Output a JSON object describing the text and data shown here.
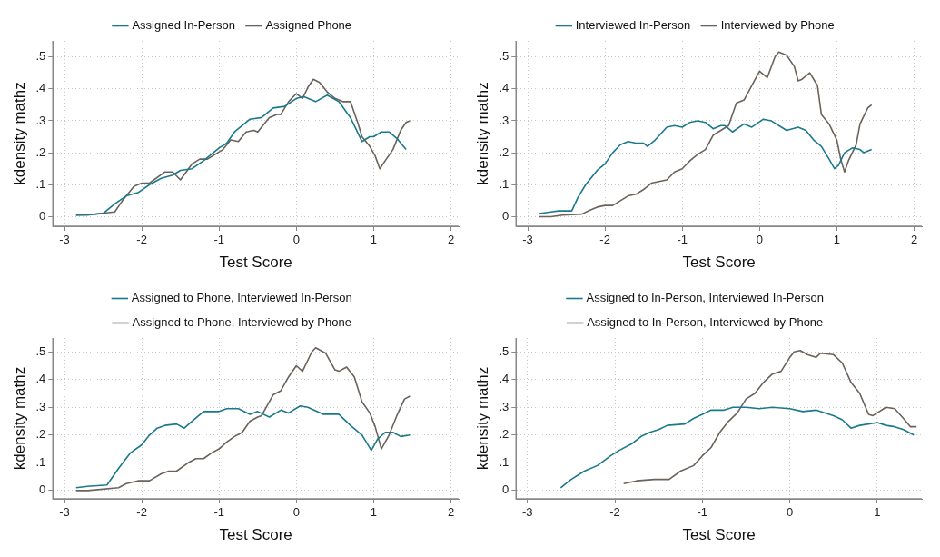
{
  "chart_data": [
    {
      "type": "line",
      "xlabel": "Test Score",
      "ylabel": "kdensity mathz",
      "legend": "top",
      "grid": true,
      "marker": "none",
      "line_style": "solid",
      "xlim": [
        -3.15,
        2.1
      ],
      "ylim": [
        -0.03,
        0.55
      ],
      "xticks": [
        -3,
        -2,
        -1,
        0,
        1,
        2
      ],
      "yticks": [
        {
          "value": 0,
          "label": "0"
        },
        {
          "value": 0.1,
          "label": ".1"
        },
        {
          "value": 0.2,
          "label": ".2"
        },
        {
          "value": 0.3,
          "label": ".3"
        },
        {
          "value": 0.4,
          "label": ".4"
        },
        {
          "value": 0.5,
          "label": ".5"
        }
      ],
      "series": [
        {
          "name": "Assigned In-Person",
          "color": "#1a7a8c",
          "x": [
            -2.85,
            -2.6,
            -2.5,
            -2.35,
            -2.2,
            -2.05,
            -1.9,
            -1.75,
            -1.6,
            -1.5,
            -1.35,
            -1.2,
            -1.0,
            -0.9,
            -0.8,
            -0.6,
            -0.45,
            -0.3,
            -0.15,
            0,
            0.1,
            0.25,
            0.4,
            0.55,
            0.7,
            0.85,
            0.95,
            1.0,
            1.1,
            1.2,
            1.3,
            1.42
          ],
          "values": [
            0.005,
            0.008,
            0.01,
            0.04,
            0.065,
            0.075,
            0.1,
            0.12,
            0.13,
            0.145,
            0.15,
            0.175,
            0.215,
            0.23,
            0.265,
            0.305,
            0.31,
            0.34,
            0.345,
            0.37,
            0.375,
            0.36,
            0.38,
            0.36,
            0.31,
            0.235,
            0.25,
            0.25,
            0.265,
            0.265,
            0.245,
            0.21
          ]
        },
        {
          "name": "Assigned Phone",
          "color": "#6b625b",
          "x": [
            -2.85,
            -2.7,
            -2.55,
            -2.35,
            -2.25,
            -2.1,
            -2.0,
            -1.9,
            -1.7,
            -1.6,
            -1.5,
            -1.35,
            -1.25,
            -1.15,
            -1.05,
            -0.95,
            -0.85,
            -0.75,
            -0.65,
            -0.55,
            -0.5,
            -0.35,
            -0.25,
            -0.2,
            -0.1,
            0,
            0.08,
            0.15,
            0.22,
            0.3,
            0.4,
            0.5,
            0.6,
            0.7,
            0.8,
            0.85,
            0.95,
            1.02,
            1.08,
            1.15,
            1.25,
            1.35,
            1.42,
            1.47
          ],
          "values": [
            0.005,
            0.005,
            0.01,
            0.015,
            0.05,
            0.095,
            0.105,
            0.105,
            0.14,
            0.14,
            0.115,
            0.165,
            0.18,
            0.18,
            0.195,
            0.21,
            0.24,
            0.235,
            0.265,
            0.27,
            0.265,
            0.31,
            0.32,
            0.32,
            0.36,
            0.385,
            0.37,
            0.405,
            0.43,
            0.42,
            0.39,
            0.37,
            0.36,
            0.36,
            0.29,
            0.25,
            0.22,
            0.19,
            0.15,
            0.175,
            0.21,
            0.27,
            0.295,
            0.3
          ]
        }
      ]
    },
    {
      "type": "line",
      "xlabel": "Test Score",
      "ylabel": "kdensity mathz",
      "legend": "top",
      "grid": true,
      "marker": "none",
      "line_style": "solid",
      "xlim": [
        -3.15,
        2.1
      ],
      "ylim": [
        -0.03,
        0.55
      ],
      "xticks": [
        -3,
        -2,
        -1,
        0,
        1,
        2
      ],
      "yticks": [
        {
          "value": 0,
          "label": "0"
        },
        {
          "value": 0.1,
          "label": ".1"
        },
        {
          "value": 0.2,
          "label": ".2"
        },
        {
          "value": 0.3,
          "label": ".3"
        },
        {
          "value": 0.4,
          "label": ".4"
        },
        {
          "value": 0.5,
          "label": ".5"
        }
      ],
      "series": [
        {
          "name": "Interviewed In-Person",
          "color": "#1a7a8c",
          "x": [
            -2.85,
            -2.7,
            -2.6,
            -2.43,
            -2.35,
            -2.25,
            -2.1,
            -2.0,
            -1.9,
            -1.8,
            -1.7,
            -1.6,
            -1.5,
            -1.45,
            -1.35,
            -1.2,
            -1.1,
            -1.0,
            -0.9,
            -0.8,
            -0.7,
            -0.6,
            -0.5,
            -0.45,
            -0.35,
            -0.2,
            -0.1,
            0.05,
            0.15,
            0.35,
            0.5,
            0.6,
            0.7,
            0.8,
            0.9,
            0.97,
            1.02,
            1.1,
            1.2,
            1.3,
            1.35,
            1.45
          ],
          "values": [
            0.01,
            0.015,
            0.018,
            0.018,
            0.06,
            0.1,
            0.145,
            0.165,
            0.2,
            0.225,
            0.235,
            0.23,
            0.23,
            0.22,
            0.24,
            0.28,
            0.285,
            0.28,
            0.295,
            0.3,
            0.295,
            0.275,
            0.285,
            0.285,
            0.265,
            0.29,
            0.28,
            0.305,
            0.3,
            0.27,
            0.28,
            0.27,
            0.24,
            0.22,
            0.18,
            0.15,
            0.16,
            0.2,
            0.215,
            0.21,
            0.2,
            0.21
          ]
        },
        {
          "name": "Interviewed by Phone",
          "color": "#6b625b",
          "x": [
            -2.85,
            -2.7,
            -2.55,
            -2.3,
            -2.2,
            -2.1,
            -2.0,
            -1.9,
            -1.8,
            -1.7,
            -1.6,
            -1.5,
            -1.4,
            -1.3,
            -1.2,
            -1.1,
            -1.0,
            -0.9,
            -0.8,
            -0.7,
            -0.6,
            -0.5,
            -0.4,
            -0.3,
            -0.2,
            -0.1,
            0,
            0.1,
            0.2,
            0.25,
            0.35,
            0.45,
            0.5,
            0.55,
            0.65,
            0.75,
            0.8,
            0.9,
            1.0,
            1.05,
            1.1,
            1.15,
            1.25,
            1.3,
            1.4,
            1.45
          ],
          "values": [
            0,
            0,
            0.005,
            0.008,
            0.02,
            0.03,
            0.035,
            0.035,
            0.05,
            0.065,
            0.07,
            0.085,
            0.105,
            0.11,
            0.115,
            0.14,
            0.15,
            0.175,
            0.195,
            0.21,
            0.255,
            0.27,
            0.285,
            0.355,
            0.365,
            0.41,
            0.455,
            0.435,
            0.5,
            0.515,
            0.505,
            0.47,
            0.425,
            0.43,
            0.45,
            0.41,
            0.32,
            0.29,
            0.24,
            0.18,
            0.14,
            0.175,
            0.225,
            0.29,
            0.34,
            0.35
          ]
        }
      ]
    },
    {
      "type": "line",
      "xlabel": "Test Score",
      "ylabel": "kdensity mathz",
      "legend": "top",
      "grid": true,
      "marker": "none",
      "line_style": "solid",
      "xlim": [
        -3.15,
        2.1
      ],
      "ylim": [
        -0.03,
        0.55
      ],
      "xticks": [
        -3,
        -2,
        -1,
        0,
        1,
        2
      ],
      "yticks": [
        {
          "value": 0,
          "label": "0"
        },
        {
          "value": 0.1,
          "label": ".1"
        },
        {
          "value": 0.2,
          "label": ".2"
        },
        {
          "value": 0.3,
          "label": ".3"
        },
        {
          "value": 0.4,
          "label": ".4"
        },
        {
          "value": 0.5,
          "label": ".5"
        }
      ],
      "series": [
        {
          "name": "Assigned to Phone, Interviewed In-Person",
          "color": "#1a7a8c",
          "x": [
            -2.85,
            -2.7,
            -2.45,
            -2.3,
            -2.15,
            -2.0,
            -1.9,
            -1.8,
            -1.7,
            -1.55,
            -1.45,
            -1.35,
            -1.2,
            -1.0,
            -0.9,
            -0.75,
            -0.6,
            -0.5,
            -0.35,
            -0.2,
            -0.1,
            0.05,
            0.15,
            0.35,
            0.55,
            0.7,
            0.85,
            0.97,
            1.05,
            1.15,
            1.25,
            1.35,
            1.47
          ],
          "values": [
            0.01,
            0.015,
            0.02,
            0.08,
            0.135,
            0.165,
            0.2,
            0.225,
            0.235,
            0.24,
            0.225,
            0.25,
            0.285,
            0.285,
            0.295,
            0.295,
            0.275,
            0.285,
            0.265,
            0.29,
            0.28,
            0.305,
            0.3,
            0.275,
            0.275,
            0.235,
            0.2,
            0.145,
            0.185,
            0.21,
            0.21,
            0.195,
            0.2
          ]
        },
        {
          "name": "Assigned to Phone, Interviewed by Phone",
          "color": "#6b625b",
          "x": [
            -2.85,
            -2.7,
            -2.3,
            -2.2,
            -2.05,
            -1.9,
            -1.75,
            -1.65,
            -1.55,
            -1.4,
            -1.3,
            -1.2,
            -1.1,
            -1.0,
            -0.9,
            -0.8,
            -0.7,
            -0.6,
            -0.5,
            -0.45,
            -0.3,
            -0.2,
            -0.1,
            0,
            0.08,
            0.2,
            0.25,
            0.38,
            0.5,
            0.55,
            0.65,
            0.75,
            0.85,
            0.95,
            1.02,
            1.1,
            1.2,
            1.3,
            1.4,
            1.47
          ],
          "values": [
            0,
            0,
            0.01,
            0.025,
            0.035,
            0.035,
            0.06,
            0.07,
            0.07,
            0.1,
            0.115,
            0.115,
            0.135,
            0.15,
            0.175,
            0.195,
            0.21,
            0.25,
            0.265,
            0.27,
            0.345,
            0.36,
            0.41,
            0.45,
            0.43,
            0.5,
            0.515,
            0.495,
            0.435,
            0.43,
            0.445,
            0.41,
            0.32,
            0.28,
            0.23,
            0.15,
            0.2,
            0.27,
            0.33,
            0.34
          ]
        }
      ]
    },
    {
      "type": "line",
      "xlabel": "Test Score",
      "ylabel": "kdensity mathz",
      "legend": "top",
      "grid": true,
      "marker": "none",
      "line_style": "solid",
      "xlim": [
        -3.13,
        1.51
      ],
      "ylim": [
        -0.03,
        0.55
      ],
      "xticks": [
        -3,
        -2,
        -1,
        0,
        1
      ],
      "yticks": [
        {
          "value": 0,
          "label": "0"
        },
        {
          "value": 0.1,
          "label": ".1"
        },
        {
          "value": 0.2,
          "label": ".2"
        },
        {
          "value": 0.3,
          "label": ".3"
        },
        {
          "value": 0.4,
          "label": ".4"
        },
        {
          "value": 0.5,
          "label": ".5"
        }
      ],
      "series": [
        {
          "name": "Assigned to In-Person, Interviewed In-Person",
          "color": "#1a7a8c",
          "x": [
            -2.62,
            -2.5,
            -2.35,
            -2.2,
            -2.05,
            -1.95,
            -1.8,
            -1.7,
            -1.6,
            -1.5,
            -1.4,
            -1.2,
            -1.1,
            -1.0,
            -0.9,
            -0.75,
            -0.65,
            -0.5,
            -0.35,
            -0.2,
            0,
            0.15,
            0.3,
            0.5,
            0.6,
            0.7,
            0.8,
            0.9,
            1.0,
            1.1,
            1.2,
            1.3,
            1.42
          ],
          "values": [
            0.01,
            0.04,
            0.07,
            0.09,
            0.125,
            0.145,
            0.17,
            0.195,
            0.21,
            0.22,
            0.235,
            0.24,
            0.26,
            0.275,
            0.29,
            0.29,
            0.3,
            0.3,
            0.295,
            0.3,
            0.295,
            0.285,
            0.29,
            0.27,
            0.255,
            0.225,
            0.235,
            0.24,
            0.245,
            0.235,
            0.23,
            0.22,
            0.2
          ]
        },
        {
          "name": "Assigned to In-Person, Interviewed by Phone",
          "color": "#6b625b",
          "x": [
            -1.9,
            -1.75,
            -1.55,
            -1.38,
            -1.25,
            -1.1,
            -1.0,
            -0.9,
            -0.8,
            -0.7,
            -0.6,
            -0.5,
            -0.4,
            -0.3,
            -0.2,
            -0.1,
            0,
            0.05,
            0.12,
            0.2,
            0.3,
            0.35,
            0.5,
            0.6,
            0.7,
            0.8,
            0.9,
            0.95,
            1.0,
            1.1,
            1.2,
            1.3,
            1.38,
            1.45
          ],
          "values": [
            0.025,
            0.035,
            0.04,
            0.04,
            0.07,
            0.09,
            0.125,
            0.155,
            0.21,
            0.25,
            0.28,
            0.33,
            0.35,
            0.39,
            0.42,
            0.43,
            0.48,
            0.5,
            0.505,
            0.49,
            0.48,
            0.495,
            0.49,
            0.46,
            0.39,
            0.35,
            0.275,
            0.27,
            0.28,
            0.3,
            0.295,
            0.26,
            0.23,
            0.23
          ]
        }
      ]
    }
  ]
}
